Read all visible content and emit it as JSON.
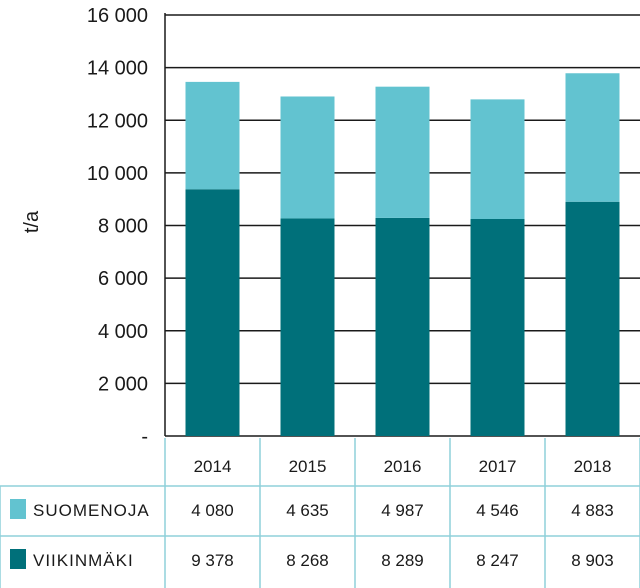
{
  "chart_data": {
    "type": "bar",
    "stacked": true,
    "categories": [
      "2014",
      "2015",
      "2016",
      "2017",
      "2018"
    ],
    "ylabel": "t/a",
    "ylim": [
      0,
      16000
    ],
    "yticks": [
      0,
      2000,
      4000,
      6000,
      8000,
      10000,
      12000,
      14000,
      16000
    ],
    "ytick_labels": [
      "-",
      "2 000",
      "4 000",
      "6 000",
      "8 000",
      "10 000",
      "12 000",
      "14 000",
      "16 000"
    ],
    "grid": true,
    "legend": "table-rows-below",
    "series": [
      {
        "name": "VIIKINMÄKI",
        "values": [
          9378,
          8268,
          8289,
          8247,
          8903
        ],
        "labels": [
          "9 378",
          "8 268",
          "8 289",
          "8 247",
          "8 903"
        ],
        "color": "#00707a"
      },
      {
        "name": "SUOMENOJA",
        "values": [
          4080,
          4635,
          4987,
          4546,
          4883
        ],
        "labels": [
          "4 080",
          "4 635",
          "4 987",
          "4 546",
          "4 883"
        ],
        "color": "#62c3d0"
      }
    ]
  },
  "colors": {
    "grid": "#1a1a1a",
    "table_border": "#8fd0da"
  }
}
